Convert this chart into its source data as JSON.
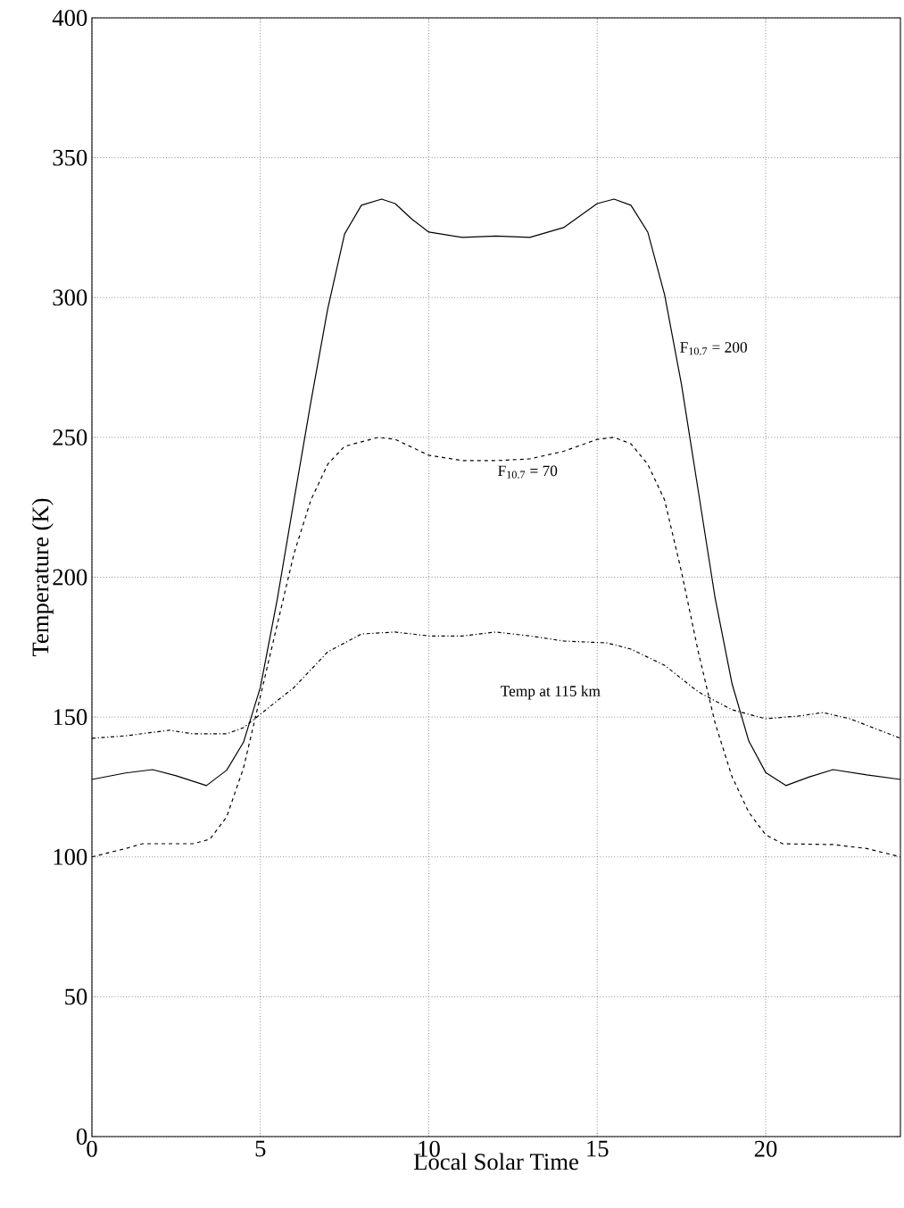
{
  "chart_data": {
    "type": "line",
    "xlabel": "Local Solar Time",
    "ylabel": "Temperature (K)",
    "xlim": [
      0,
      24
    ],
    "ylim": [
      0,
      400
    ],
    "xticks": [
      0,
      5,
      10,
      15,
      20
    ],
    "yticks": [
      0,
      50,
      100,
      150,
      200,
      250,
      300,
      350,
      400
    ],
    "grid": true,
    "series": [
      {
        "color": "#000000",
        "line_style": "solid",
        "x": [
          0,
          1,
          1.8,
          2.5,
          3.4,
          4,
          4.5,
          5,
          5.5,
          6,
          6.5,
          7,
          7.5,
          8,
          8.6,
          9,
          9.5,
          10,
          11,
          12,
          13,
          14,
          15,
          15.5,
          16,
          16.5,
          17,
          17.5,
          18,
          18.5,
          19,
          19.5,
          20,
          20.6,
          21.3,
          22,
          23,
          24
        ],
        "values": [
          127.7,
          130,
          131.2,
          129,
          125.5,
          131,
          141,
          160.6,
          192,
          227.6,
          262.7,
          296,
          322.7,
          333,
          335.2,
          333.6,
          328,
          323.4,
          321.5,
          322,
          321.5,
          325,
          333.6,
          335.2,
          333,
          323.4,
          301,
          269,
          230.8,
          192.5,
          162,
          141.4,
          130.2,
          125.5,
          128.6,
          131.2,
          129.3,
          127.7
        ]
      },
      {
        "color": "#000000",
        "line_style": "dashed",
        "x": [
          0,
          1,
          1.5,
          3,
          3.5,
          4,
          4.5,
          5,
          5.5,
          6,
          6.5,
          7,
          7.5,
          8.5,
          9,
          10,
          11,
          12,
          13,
          14,
          15,
          15.5,
          16,
          16.5,
          17,
          17.5,
          18,
          18.5,
          19,
          19.5,
          20,
          20.5,
          22,
          23,
          24
        ],
        "values": [
          100,
          103,
          104.7,
          104.7,
          106.3,
          114.3,
          131.8,
          157.4,
          183,
          208.5,
          227.6,
          240.4,
          246.8,
          250,
          249.3,
          243.6,
          241.7,
          241.7,
          242.3,
          245,
          249.3,
          250,
          247.7,
          240.4,
          227.6,
          202,
          173.3,
          147.8,
          128.7,
          115.9,
          107.9,
          104.7,
          104.4,
          103,
          100
        ]
      },
      {
        "color": "#000000",
        "line_style": "dashdot",
        "x": [
          0,
          1,
          2.3,
          3,
          4,
          4.5,
          5,
          6,
          7,
          8,
          9,
          10,
          11,
          12,
          13,
          14,
          15.3,
          16,
          17,
          18,
          19,
          20,
          21,
          21.7,
          22.5,
          24
        ],
        "values": [
          142.4,
          143.3,
          145.3,
          144,
          144,
          146.2,
          151,
          160.6,
          173.3,
          179.7,
          180.4,
          179,
          179,
          180.4,
          179,
          177.2,
          176.5,
          174.3,
          168.5,
          159,
          152.6,
          149.4,
          150.4,
          151.6,
          149.4,
          142.4
        ]
      }
    ],
    "annotations": [
      {
        "text": "F$_{10.7}$ = 200",
        "x": 17.3,
        "y": 281.8
      },
      {
        "text": "F$_{10.7}$ = 70",
        "x": 12,
        "y": 241.7
      },
      "Temp at 115 km"
    ]
  }
}
